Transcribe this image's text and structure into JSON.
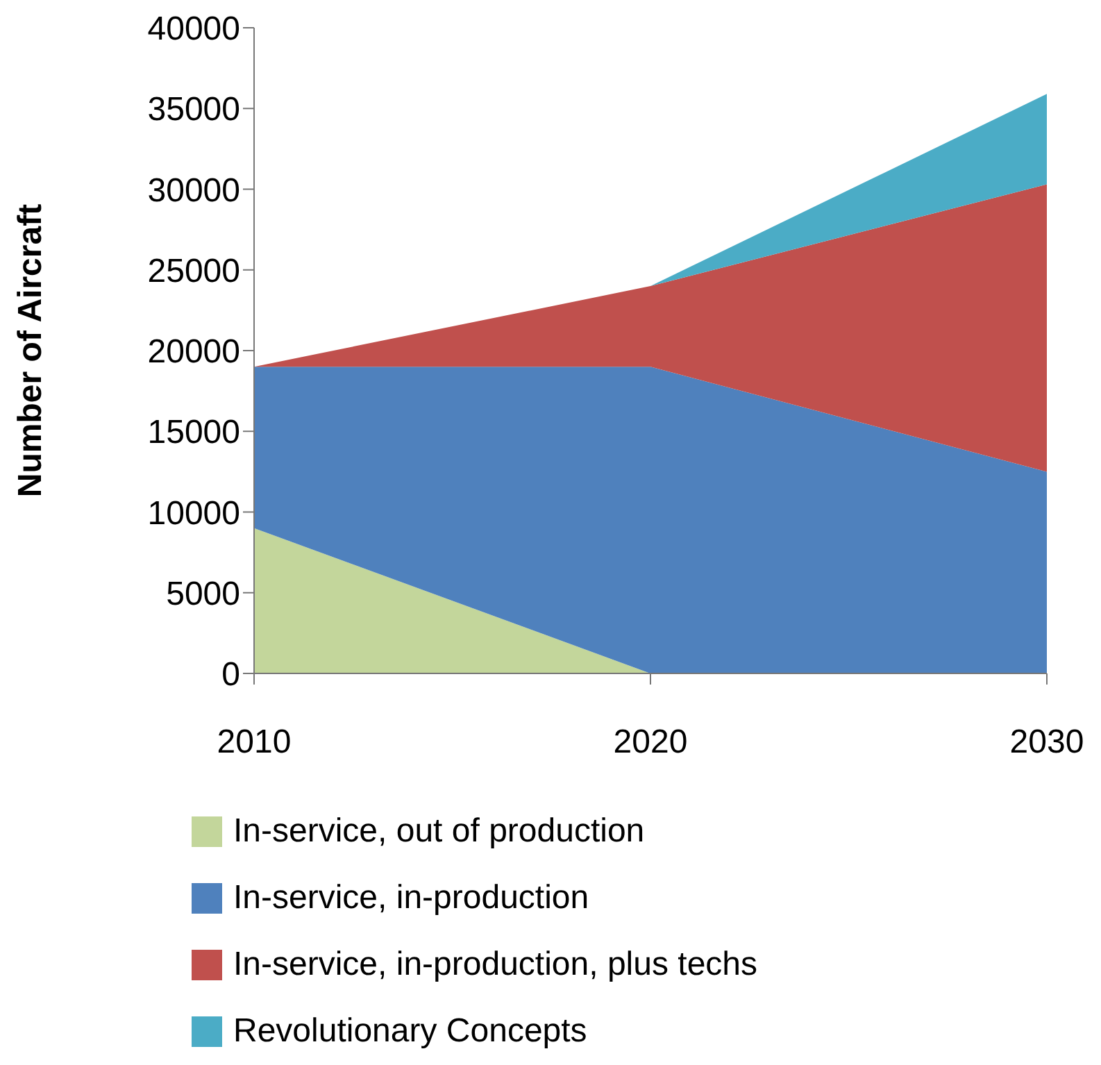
{
  "chart_data": {
    "type": "area",
    "stacked": true,
    "ylabel": "Number of Aircraft",
    "x": [
      2010,
      2020,
      2030
    ],
    "xlim": [
      2010,
      2030
    ],
    "xticks": [
      2010,
      2020,
      2030
    ],
    "ylim": [
      0,
      40000
    ],
    "yticks": [
      0,
      5000,
      10000,
      15000,
      20000,
      25000,
      30000,
      35000,
      40000
    ],
    "grid": false,
    "legend": "bottom",
    "series": [
      {
        "name": "In-service, out of production",
        "color": "#c3d69b",
        "values": [
          9000,
          0,
          0
        ]
      },
      {
        "name": "In-service, in-production",
        "color": "#4f81bd",
        "values": [
          10000,
          19000,
          12500
        ]
      },
      {
        "name": "In-service, in-production, plus techs",
        "color": "#c0504d",
        "values": [
          0,
          5000,
          17800
        ]
      },
      {
        "name": "Revolutionary Concepts",
        "color": "#4bacc6",
        "values": [
          0,
          0,
          5600
        ]
      }
    ]
  }
}
